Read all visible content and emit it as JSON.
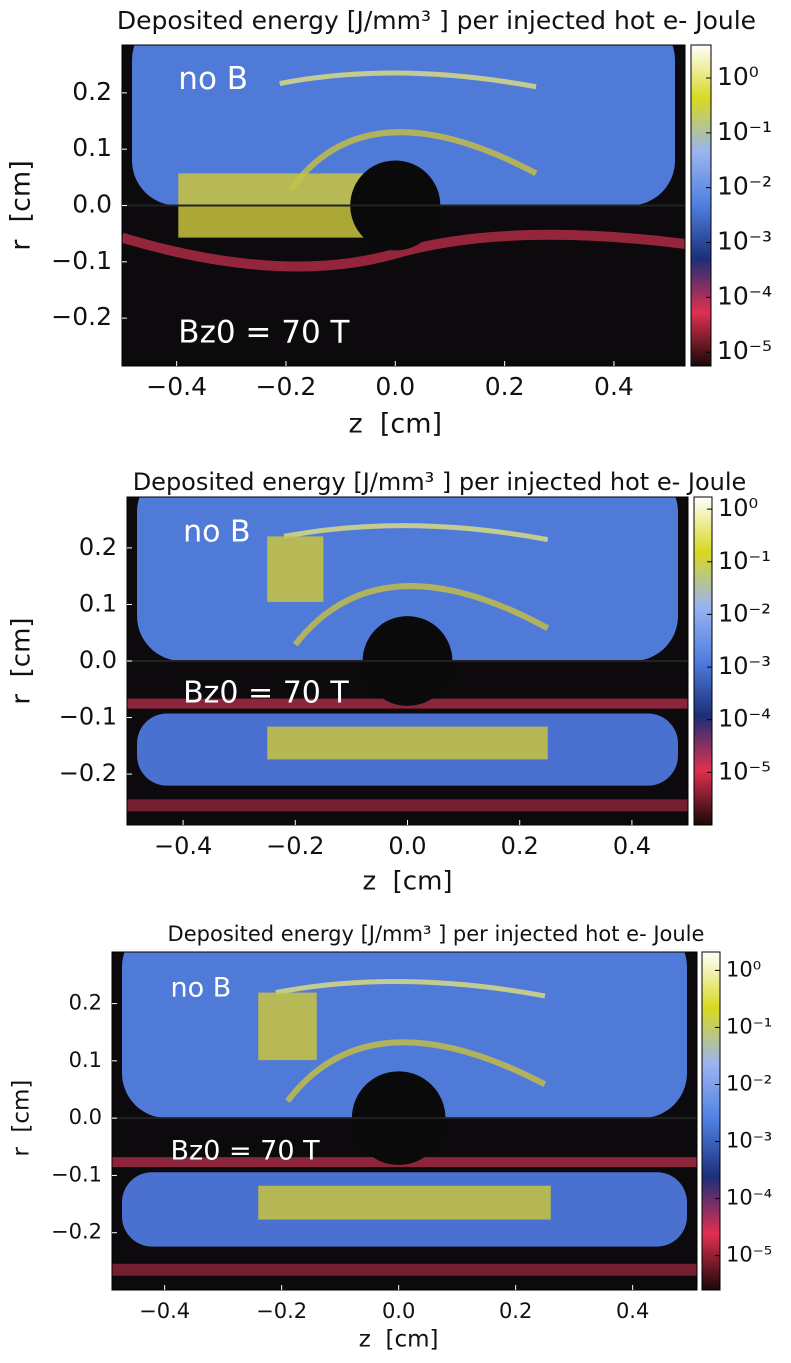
{
  "chart_data": [
    {
      "type": "heatmap",
      "title": "Deposited energy [J/mm³ ] per injected hot e- Joule",
      "xlabel": "z  [cm]",
      "ylabel": "r  [cm]",
      "annotations": [
        "no B",
        "Bz0 = 70 T"
      ],
      "xlim": [
        -0.5,
        0.53
      ],
      "ylim": [
        -0.285,
        0.285
      ],
      "xticks": [
        {
          "value": -0.4,
          "label": "−0.4"
        },
        {
          "value": -0.2,
          "label": "−0.2"
        },
        {
          "value": 0,
          "label": "0.0"
        },
        0.2,
        0.4
      ],
      "yticks": [
        {
          "value": -0.2,
          "label": "−0.2"
        },
        {
          "value": -0.1,
          "label": "−0.1"
        },
        {
          "value": 0,
          "label": "0.0"
        },
        0.1,
        0.2
      ],
      "colorbar_scale": "log",
      "clim": [
        5.6e-06,
        4
      ],
      "cticks": [
        {
          "value": 1,
          "label": "10⁰"
        },
        {
          "value": 0.1,
          "label": "10⁻¹"
        },
        {
          "value": 0.01,
          "label": "10⁻²"
        },
        {
          "value": 0.001,
          "label": "10⁻³"
        },
        {
          "value": 0.0001,
          "label": "10⁻⁴"
        },
        {
          "value": 1e-05,
          "label": "10⁻⁵"
        }
      ],
      "colormap": [
        "#1a0808",
        "#e03050",
        "#1c2f78",
        "#4f7ee0",
        "#9ab4f0",
        "#d8d820",
        "#ffffff"
      ]
    },
    {
      "type": "heatmap",
      "title": "Deposited energy [J/mm³ ] per injected hot e- Joule",
      "xlabel": "z  [cm]",
      "ylabel": "r  [cm]",
      "annotations": [
        "no B",
        "Bz0 = 70 T"
      ],
      "xlim": [
        -0.5,
        0.5
      ],
      "ylim": [
        -0.29,
        0.29
      ],
      "xticks": [
        {
          "value": -0.4,
          "label": "−0.4"
        },
        {
          "value": -0.2,
          "label": "−0.2"
        },
        {
          "value": 0,
          "label": "0.0"
        },
        0.2,
        0.4
      ],
      "yticks": [
        {
          "value": -0.2,
          "label": "−0.2"
        },
        {
          "value": -0.1,
          "label": "−0.1"
        },
        {
          "value": 0,
          "label": "0.0"
        },
        0.1,
        0.2
      ],
      "colorbar_scale": "log",
      "clim": [
        1e-06,
        1.7
      ],
      "cticks": [
        {
          "value": 1,
          "label": "10⁰"
        },
        {
          "value": 0.1,
          "label": "10⁻¹"
        },
        {
          "value": 0.01,
          "label": "10⁻²"
        },
        {
          "value": 0.001,
          "label": "10⁻³"
        },
        {
          "value": 0.0001,
          "label": "10⁻⁴"
        },
        {
          "value": 1e-05,
          "label": "10⁻⁵"
        }
      ],
      "colormap": [
        "#1a0808",
        "#e03050",
        "#1c2f78",
        "#4f7ee0",
        "#9ab4f0",
        "#d8d820",
        "#ffffff"
      ]
    },
    {
      "type": "heatmap",
      "title": "Deposited energy [J/mm³ ] per injected hot e- Joule",
      "xlabel": "z  [cm]",
      "ylabel": "r  [cm]",
      "annotations": [
        "no B",
        "Bz0 = 70 T"
      ],
      "xlim": [
        -0.49,
        0.51
      ],
      "ylim": [
        -0.3,
        0.29
      ],
      "xticks": [
        {
          "value": -0.4,
          "label": "−0.4"
        },
        {
          "value": -0.2,
          "label": "−0.2"
        },
        {
          "value": 0,
          "label": "0.0"
        },
        0.2,
        0.4
      ],
      "yticks": [
        {
          "value": -0.2,
          "label": "−0.2"
        },
        {
          "value": -0.1,
          "label": "−0.1"
        },
        {
          "value": 0,
          "label": "0.0"
        },
        0.1,
        0.2
      ],
      "colorbar_scale": "log",
      "clim": [
        2.5e-06,
        2.1
      ],
      "cticks": [
        {
          "value": 1,
          "label": "10⁰"
        },
        {
          "value": 0.1,
          "label": "10⁻¹"
        },
        {
          "value": 0.01,
          "label": "10⁻²"
        },
        {
          "value": 0.001,
          "label": "10⁻³"
        },
        {
          "value": 0.0001,
          "label": "10⁻⁴"
        },
        {
          "value": 1e-05,
          "label": "10⁻⁵"
        }
      ],
      "colormap": [
        "#1a0808",
        "#e03050",
        "#1c2f78",
        "#4f7ee0",
        "#9ab4f0",
        "#d8d820",
        "#ffffff"
      ]
    }
  ]
}
